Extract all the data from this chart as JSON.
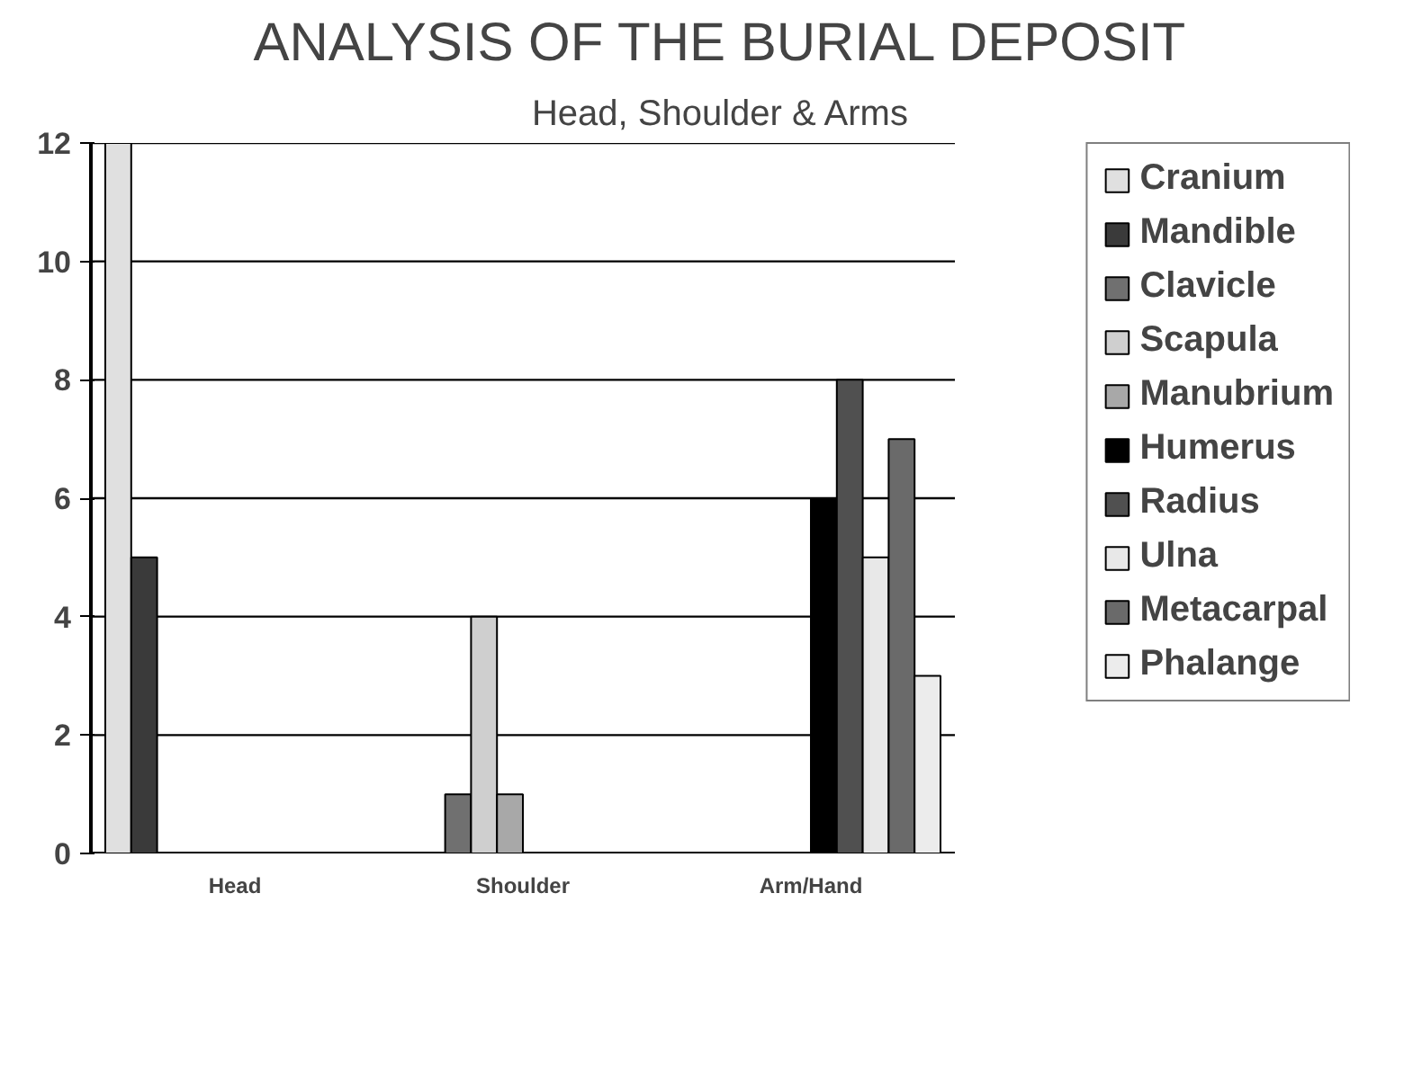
{
  "chart_data": {
    "type": "bar",
    "title": "ANALYSIS OF THE BURIAL DEPOSIT",
    "subtitle": "Head, Shoulder & Arms",
    "categories": [
      "Head",
      "Shoulder",
      "Arm/Hand"
    ],
    "series": [
      {
        "name": "Cranium",
        "color": "#e0e0e0",
        "values": [
          12,
          null,
          null
        ]
      },
      {
        "name": "Mandible",
        "color": "#3a3a3a",
        "values": [
          5,
          null,
          null
        ]
      },
      {
        "name": "Clavicle",
        "color": "#707070",
        "values": [
          null,
          1,
          null
        ]
      },
      {
        "name": "Scapula",
        "color": "#cfcfcf",
        "values": [
          null,
          4,
          null
        ]
      },
      {
        "name": "Manubrium",
        "color": "#a8a8a8",
        "values": [
          null,
          1,
          null
        ]
      },
      {
        "name": "Humerus",
        "color": "#000000",
        "values": [
          null,
          null,
          6
        ]
      },
      {
        "name": "Radius",
        "color": "#505050",
        "values": [
          null,
          null,
          8
        ]
      },
      {
        "name": "Ulna",
        "color": "#e8e8e8",
        "values": [
          null,
          null,
          5
        ]
      },
      {
        "name": "Metacarpal",
        "color": "#6a6a6a",
        "values": [
          null,
          null,
          7
        ]
      },
      {
        "name": "Phalange",
        "color": "#ececec",
        "values": [
          null,
          null,
          3
        ]
      }
    ],
    "ylim": [
      0,
      12
    ],
    "yticks": [
      0,
      2,
      4,
      6,
      8,
      10,
      12
    ],
    "grid": "y",
    "legend": "right"
  }
}
